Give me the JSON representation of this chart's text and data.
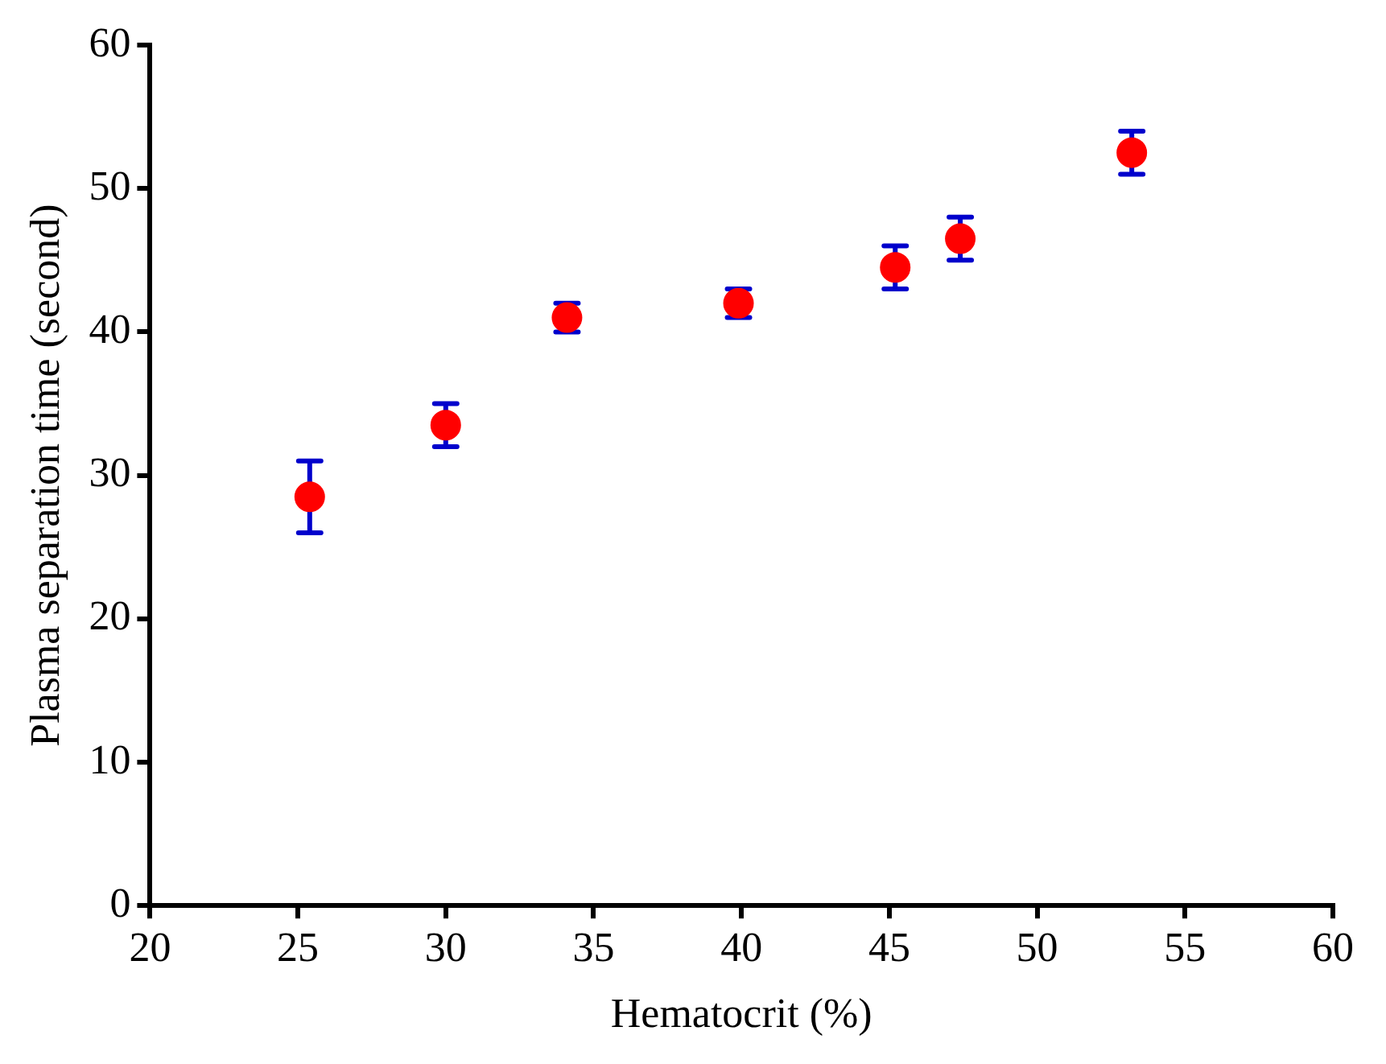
{
  "chart_data": {
    "type": "scatter",
    "xlabel": "Hematocrit (%)",
    "ylabel": "Plasma separation time (second)",
    "x": [
      25.4,
      30.0,
      34.1,
      39.9,
      45.2,
      47.4,
      53.2
    ],
    "series": [
      {
        "color": "#ff0000",
        "values": [
          28.5,
          33.5,
          41,
          42,
          44.5,
          46.5,
          52.5
        ],
        "errors": [
          2.5,
          1.5,
          1,
          1,
          1.5,
          1.5,
          1.5
        ]
      }
    ],
    "xlim": [
      20,
      60
    ],
    "xticks": [
      20,
      25,
      30,
      35,
      40,
      45,
      50,
      55,
      60
    ],
    "ylim": [
      0,
      60
    ],
    "yticks": [
      0,
      10,
      20,
      30,
      40,
      50,
      60
    ],
    "grid": false,
    "legend": false,
    "marker": "circle"
  }
}
